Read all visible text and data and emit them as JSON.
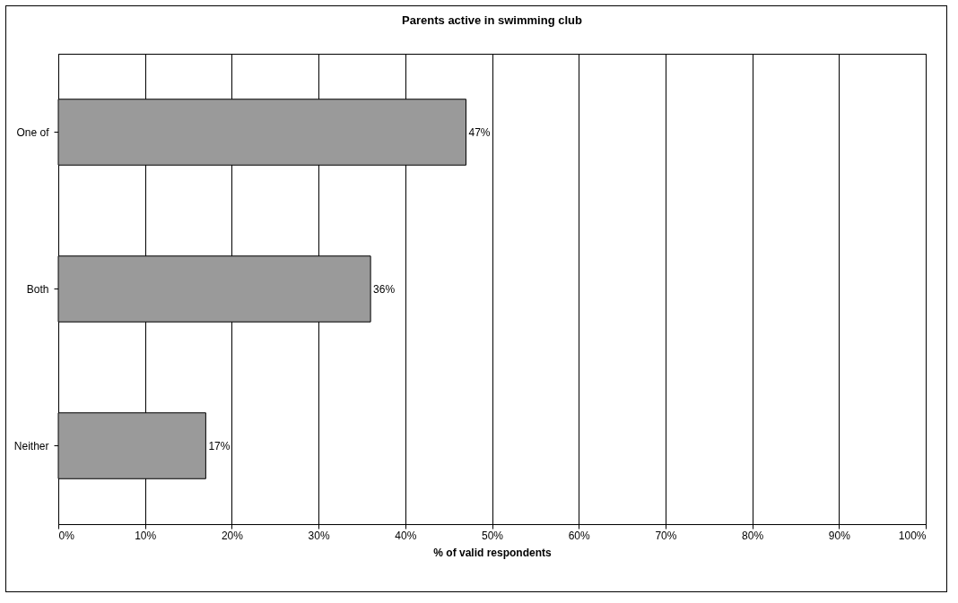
{
  "chart_data": {
    "type": "bar",
    "orientation": "horizontal",
    "title": "Parents active in swimming club",
    "xlabel": "% of valid respondents",
    "categories": [
      "One of",
      "Both",
      "Neither"
    ],
    "values": [
      47,
      36,
      17
    ],
    "value_labels": [
      "47%",
      "36%",
      "17%"
    ],
    "color": "#9a9a9a",
    "xlim": [
      0,
      100
    ],
    "xticks": [
      {
        "value": 0,
        "label": "0%"
      },
      {
        "value": 10,
        "label": "10%"
      },
      {
        "value": 20,
        "label": "20%"
      },
      {
        "value": 30,
        "label": "30%"
      },
      {
        "value": 40,
        "label": "40%"
      },
      {
        "value": 50,
        "label": "50%"
      },
      {
        "value": 60,
        "label": "60%"
      },
      {
        "value": 70,
        "label": "70%"
      },
      {
        "value": 80,
        "label": "80%"
      },
      {
        "value": 90,
        "label": "90%"
      },
      {
        "value": 100,
        "label": "100%"
      }
    ],
    "grid": "x"
  }
}
